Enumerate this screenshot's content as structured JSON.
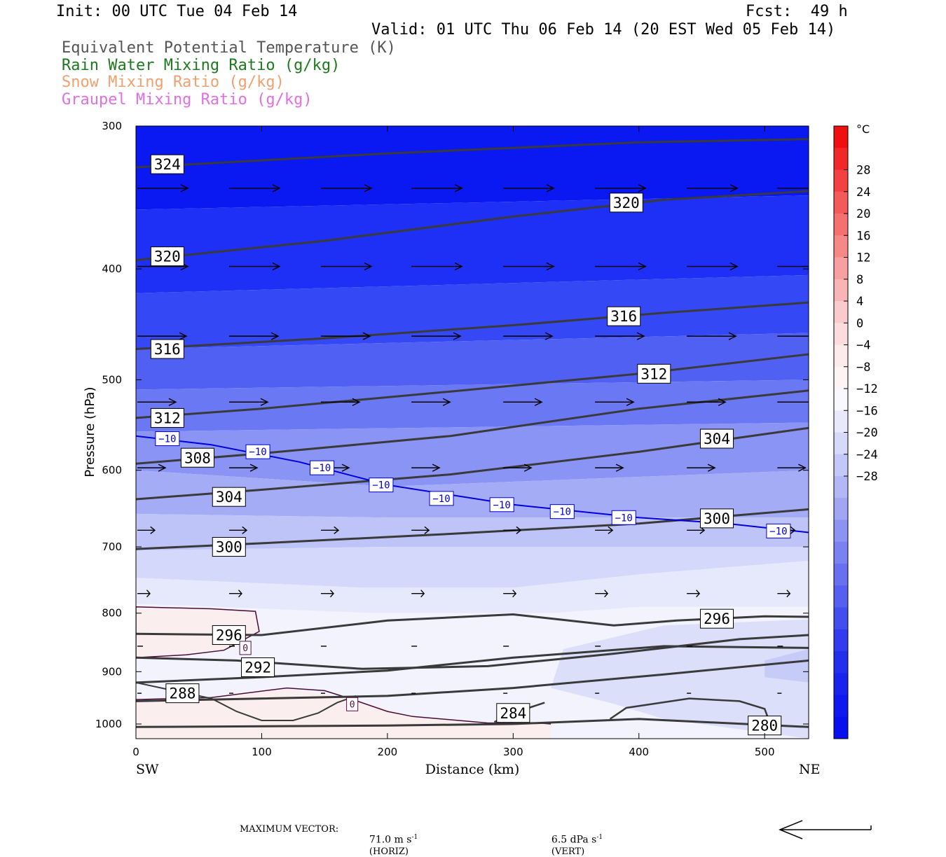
{
  "header": {
    "init": "Init: 00 UTC Tue 04 Feb 14",
    "fcst": "Fcst:  49 h",
    "valid": "Valid: 01 UTC Thu 06 Feb 14 (20 EST Wed 05 Feb 14)",
    "fields": [
      {
        "text": "Equivalent Potential Temperature (K)",
        "color": "#555555"
      },
      {
        "text": "Rain Water Mixing Ratio (g/kg)",
        "color": "#1e7a1e"
      },
      {
        "text": "Snow Mixing Ratio (g/kg)",
        "color": "#f0a070"
      },
      {
        "text": "Graupel Mixing Ratio (g/kg)",
        "color": "#e070e0"
      }
    ]
  },
  "axes": {
    "ylabel": "Pressure (hPa)",
    "xlabel": "Distance (km)",
    "left_end": "SW",
    "right_end": "NE",
    "y_ticks": [
      "300",
      "400",
      "500",
      "600",
      "700",
      "800",
      "900",
      "1000"
    ],
    "x_ticks": [
      "0",
      "100",
      "200",
      "300",
      "400",
      "500"
    ]
  },
  "colorbar": {
    "unit": "°C",
    "labels": [
      "28",
      "24",
      "20",
      "16",
      "12",
      "8",
      "4",
      "0",
      "−4",
      "−8",
      "−12",
      "−16",
      "−20",
      "−24",
      "−28"
    ]
  },
  "footer": {
    "max_vector": "MAXIMUM VECTOR:",
    "horiz": "71.0 m s",
    "horiz_unit": "(HORIZ)",
    "vert": "6.5 dPa s",
    "vert_unit": "(VERT)",
    "exp": "-1"
  },
  "chart_data": {
    "type": "cross-section contour",
    "x_range_km": [
      0,
      535
    ],
    "y_range_hpa": [
      300,
      1030
    ],
    "y_scale": "log-pressure",
    "theta_e_labels": [
      {
        "value": "324",
        "x": 25,
        "p": 324
      },
      {
        "value": "320",
        "x": 390,
        "p": 350
      },
      {
        "value": "320",
        "x": 25,
        "p": 390
      },
      {
        "value": "316",
        "x": 388,
        "p": 440
      },
      {
        "value": "316",
        "x": 25,
        "p": 470
      },
      {
        "value": "312",
        "x": 412,
        "p": 494
      },
      {
        "value": "312",
        "x": 25,
        "p": 540
      },
      {
        "value": "308",
        "x": 49,
        "p": 585
      },
      {
        "value": "304",
        "x": 462,
        "p": 563
      },
      {
        "value": "304",
        "x": 74,
        "p": 633
      },
      {
        "value": "300",
        "x": 462,
        "p": 661
      },
      {
        "value": "300",
        "x": 74,
        "p": 700
      },
      {
        "value": "296",
        "x": 462,
        "p": 809
      },
      {
        "value": "296",
        "x": 74,
        "p": 836
      },
      {
        "value": "292",
        "x": 97,
        "p": 892
      },
      {
        "value": "288",
        "x": 37,
        "p": 940
      },
      {
        "value": "284",
        "x": 300,
        "p": 978
      },
      {
        "value": "280",
        "x": 500,
        "p": 1003
      }
    ],
    "temp_minus10_labels": [
      {
        "value": "−10",
        "x": 25,
        "p": 563
      },
      {
        "value": "−10",
        "x": 97,
        "p": 578
      },
      {
        "value": "−10",
        "x": 148,
        "p": 597
      },
      {
        "value": "−10",
        "x": 195,
        "p": 618
      },
      {
        "value": "−10",
        "x": 243,
        "p": 635
      },
      {
        "value": "−10",
        "x": 291,
        "p": 643
      },
      {
        "value": "−10",
        "x": 339,
        "p": 652
      },
      {
        "value": "−10",
        "x": 388,
        "p": 660
      },
      {
        "value": "−10",
        "x": 511,
        "p": 678
      }
    ],
    "temp_zero_labels": [
      {
        "value": "0",
        "x": 87,
        "p": 858
      },
      {
        "value": "0",
        "x": 172,
        "p": 961
      }
    ],
    "colorbar_range_c": [
      -32,
      32
    ],
    "colorbar_step_c": 4
  }
}
